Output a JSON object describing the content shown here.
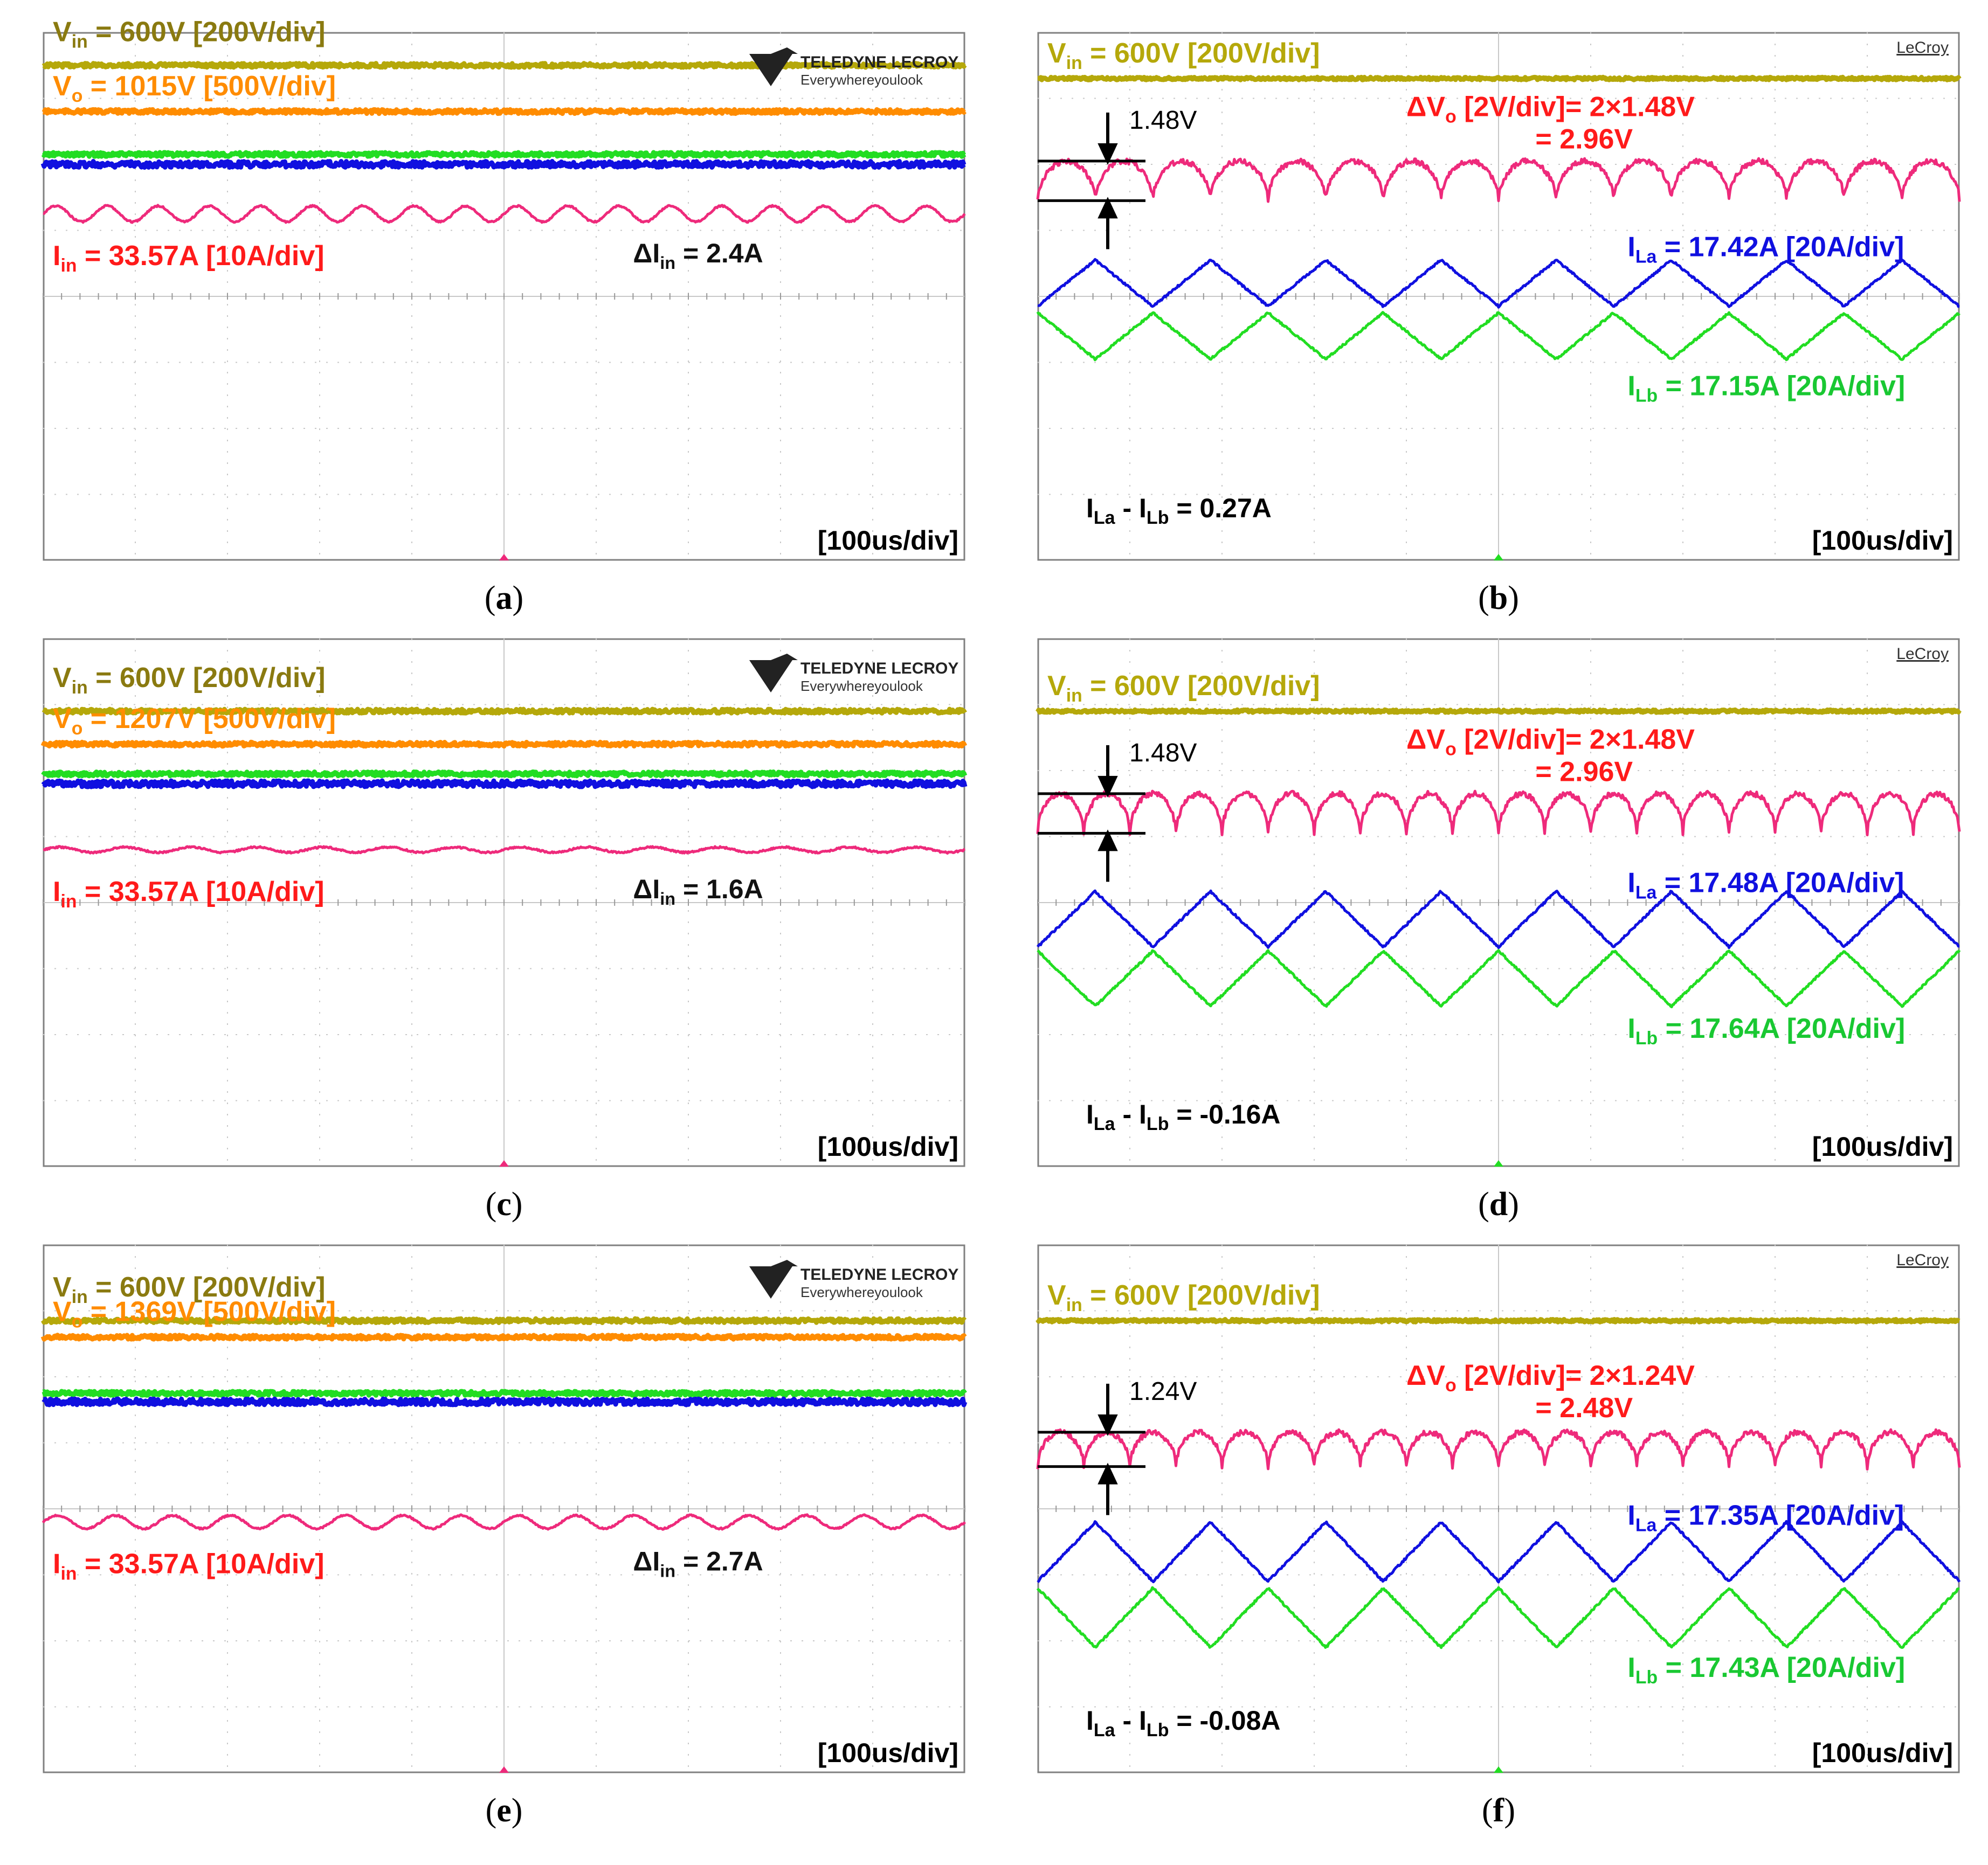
{
  "colors": {
    "vin": "#b5a80a",
    "vin_label": "#8a7a10",
    "vo": "#ff8c00",
    "iin": "#ee2a7b",
    "iin_label": "#ff1a1a",
    "ila": "#1010e0",
    "ilb": "#22dd22",
    "grid": "#808080",
    "lecroy": "#333333"
  },
  "branding": {
    "teledyne_name": "TELEDYNE LECROY",
    "teledyne_tagline": "Everywhereyoulook",
    "lecroy": "LeCroy"
  },
  "chart_data": [
    {
      "type": "line",
      "panel": "a",
      "caption": "a",
      "x_range_div": [
        0,
        10
      ],
      "y_range_div": [
        0,
        8
      ],
      "timebase": "[100us/div]",
      "series": [
        {
          "name": "Vin",
          "label": "V",
          "sub": "in",
          "value_text": " = 600V [200V/div]",
          "level_div": 7.5,
          "shape": "flat",
          "ripple_div": 0.03
        },
        {
          "name": "Vo",
          "label": "V",
          "sub": "o",
          "value_text": " = 1015V [500V/div]",
          "level_div": 6.8,
          "shape": "flat",
          "ripple_div": 0.03
        },
        {
          "name": "ILb",
          "level_div": 6.15,
          "shape": "flat",
          "ripple_div": 0.03
        },
        {
          "name": "ILa",
          "level_div": 6.0,
          "shape": "noise",
          "ripple_div": 0.03
        },
        {
          "name": "Iin",
          "label": "I",
          "sub": "in",
          "value_text": " = 33.57A [10A/div]",
          "level_div": 5.25,
          "shape": "sine",
          "ripple_div": 0.12,
          "periods": 18
        }
      ],
      "annotations": [
        {
          "text": "ΔI",
          "sub": "in",
          "rest": " = 2.4A",
          "delta_value": 2.4
        }
      ],
      "ripple_unit_marker": "ΔI_in",
      "iin_ripple_A": 2.4
    },
    {
      "type": "line",
      "panel": "b",
      "caption": "b",
      "x_range_div": [
        0,
        10
      ],
      "y_range_div": [
        0,
        8
      ],
      "timebase": "[100us/div]",
      "series": [
        {
          "name": "Vin",
          "label": "V",
          "sub": "in",
          "value_text": " = 600V [200V/div]",
          "level_div": 7.3,
          "shape": "flat",
          "ripple_div": 0.02
        },
        {
          "name": "ΔVo",
          "level_div": 5.75,
          "shape": "cusp",
          "ripple_div": 0.3,
          "periods": 16
        },
        {
          "name": "ILa",
          "label": "I",
          "sub": "La",
          "value_text": " = 17.42A [20A/div]",
          "level_div": 4.2,
          "shape": "triangle",
          "ripple_div": 0.35,
          "periods": 8
        },
        {
          "name": "ILb",
          "label": "I",
          "sub": "Lb",
          "value_text": " = 17.15A [20A/div]",
          "level_div": 3.4,
          "shape": "triangle",
          "ripple_div": 0.35,
          "periods": 8,
          "phase": 0.5
        }
      ],
      "delta_vo": {
        "label": "ΔV",
        "sub": "o",
        "line1": " [2V/div]= 2×1.48V",
        "line2": "= 2.96V",
        "marker": "1.48V",
        "value_V": 2.96
      },
      "current_diff": {
        "a": "I",
        "sa": "La",
        "mid": " - I",
        "sb": "Lb",
        "rest": " = 0.27A",
        "value_A": 0.27
      }
    },
    {
      "type": "line",
      "panel": "c",
      "caption": "c",
      "x_range_div": [
        0,
        10
      ],
      "y_range_div": [
        0,
        8
      ],
      "timebase": "[100us/div]",
      "series": [
        {
          "name": "Vin",
          "label": "V",
          "sub": "in",
          "value_text": " = 600V [200V/div]",
          "level_div": 6.9,
          "shape": "flat",
          "ripple_div": 0.03
        },
        {
          "name": "Vo",
          "label": "V",
          "sub": "o",
          "value_text": " = 1207V [500V/div]",
          "level_div": 6.4,
          "shape": "flat",
          "ripple_div": 0.03
        },
        {
          "name": "ILb",
          "level_div": 5.95,
          "shape": "flat",
          "ripple_div": 0.03
        },
        {
          "name": "ILa",
          "level_div": 5.8,
          "shape": "noise",
          "ripple_div": 0.03
        },
        {
          "name": "Iin",
          "label": "I",
          "sub": "in",
          "value_text": " = 33.57A [10A/div]",
          "level_div": 4.8,
          "shape": "sine",
          "ripple_div": 0.04,
          "periods": 14
        }
      ],
      "annotations": [
        {
          "text": "ΔI",
          "sub": "in",
          "rest": " = 1.6A",
          "delta_value": 1.6
        }
      ],
      "iin_ripple_A": 1.6
    },
    {
      "type": "line",
      "panel": "d",
      "caption": "d",
      "x_range_div": [
        0,
        10
      ],
      "y_range_div": [
        0,
        8
      ],
      "timebase": "[100us/div]",
      "series": [
        {
          "name": "Vin",
          "label": "V",
          "sub": "in",
          "value_text": " = 600V [200V/div]",
          "level_div": 6.9,
          "shape": "flat",
          "ripple_div": 0.02
        },
        {
          "name": "ΔVo",
          "level_div": 5.35,
          "shape": "cusp",
          "ripple_div": 0.3,
          "periods": 20
        },
        {
          "name": "ILa",
          "label": "I",
          "sub": "La",
          "value_text": " = 17.48A [20A/div]",
          "level_div": 3.75,
          "shape": "triangle",
          "ripple_div": 0.42,
          "periods": 8
        },
        {
          "name": "ILb",
          "label": "I",
          "sub": "Lb",
          "value_text": " = 17.64A [20A/div]",
          "level_div": 2.85,
          "shape": "triangle",
          "ripple_div": 0.42,
          "periods": 8,
          "phase": 0.5
        }
      ],
      "delta_vo": {
        "label": "ΔV",
        "sub": "o",
        "line1": " [2V/div]= 2×1.48V",
        "line2": "= 2.96V",
        "marker": "1.48V",
        "value_V": 2.96
      },
      "current_diff": {
        "a": "I",
        "sa": "La",
        "mid": " - I",
        "sb": "Lb",
        "rest": " = -0.16A",
        "value_A": -0.16
      }
    },
    {
      "type": "line",
      "panel": "e",
      "caption": "e",
      "x_range_div": [
        0,
        10
      ],
      "y_range_div": [
        0,
        8
      ],
      "timebase": "[100us/div]",
      "series": [
        {
          "name": "Vin",
          "label": "V",
          "sub": "in",
          "value_text": " = 600V [200V/div]",
          "level_div": 6.85,
          "shape": "flat",
          "ripple_div": 0.03
        },
        {
          "name": "Vo",
          "label": "V",
          "sub": "o",
          "value_text": " = 1369V [500V/div]",
          "level_div": 6.6,
          "shape": "flat",
          "ripple_div": 0.03
        },
        {
          "name": "ILb",
          "level_div": 5.75,
          "shape": "flat",
          "ripple_div": 0.03
        },
        {
          "name": "ILa",
          "level_div": 5.62,
          "shape": "noise",
          "ripple_div": 0.03
        },
        {
          "name": "Iin",
          "label": "I",
          "sub": "in",
          "value_text": " = 33.57A [10A/div]",
          "level_div": 3.8,
          "shape": "sine",
          "ripple_div": 0.1,
          "periods": 16
        }
      ],
      "annotations": [
        {
          "text": "ΔI",
          "sub": "in",
          "rest": " = 2.7A",
          "delta_value": 2.7
        }
      ],
      "iin_ripple_A": 2.7
    },
    {
      "type": "line",
      "panel": "f",
      "caption": "f",
      "x_range_div": [
        0,
        10
      ],
      "y_range_div": [
        0,
        8
      ],
      "timebase": "[100us/div]",
      "series": [
        {
          "name": "Vin",
          "label": "V",
          "sub": "in",
          "value_text": " = 600V  [200V/div]",
          "level_div": 6.85,
          "shape": "flat",
          "ripple_div": 0.02
        },
        {
          "name": "ΔVo",
          "level_div": 4.9,
          "shape": "cusp",
          "ripple_div": 0.26,
          "periods": 20
        },
        {
          "name": "ILa",
          "label": "I",
          "sub": "La",
          "value_text": " = 17.35A [20A/div]",
          "level_div": 3.35,
          "shape": "triangle",
          "ripple_div": 0.45,
          "periods": 8
        },
        {
          "name": "ILb",
          "label": "I",
          "sub": "Lb",
          "value_text": " = 17.43A [20A/div]",
          "level_div": 2.35,
          "shape": "triangle",
          "ripple_div": 0.45,
          "periods": 8,
          "phase": 0.5
        }
      ],
      "delta_vo": {
        "label": "ΔV",
        "sub": "o",
        "line1": " [2V/div]= 2×1.24V",
        "line2": "= 2.48V",
        "marker": "1.24V",
        "value_V": 2.48
      },
      "current_diff": {
        "a": "I",
        "sa": "La",
        "mid": " - I",
        "sb": "Lb",
        "rest": " = -0.08A",
        "value_A": -0.08
      }
    }
  ]
}
